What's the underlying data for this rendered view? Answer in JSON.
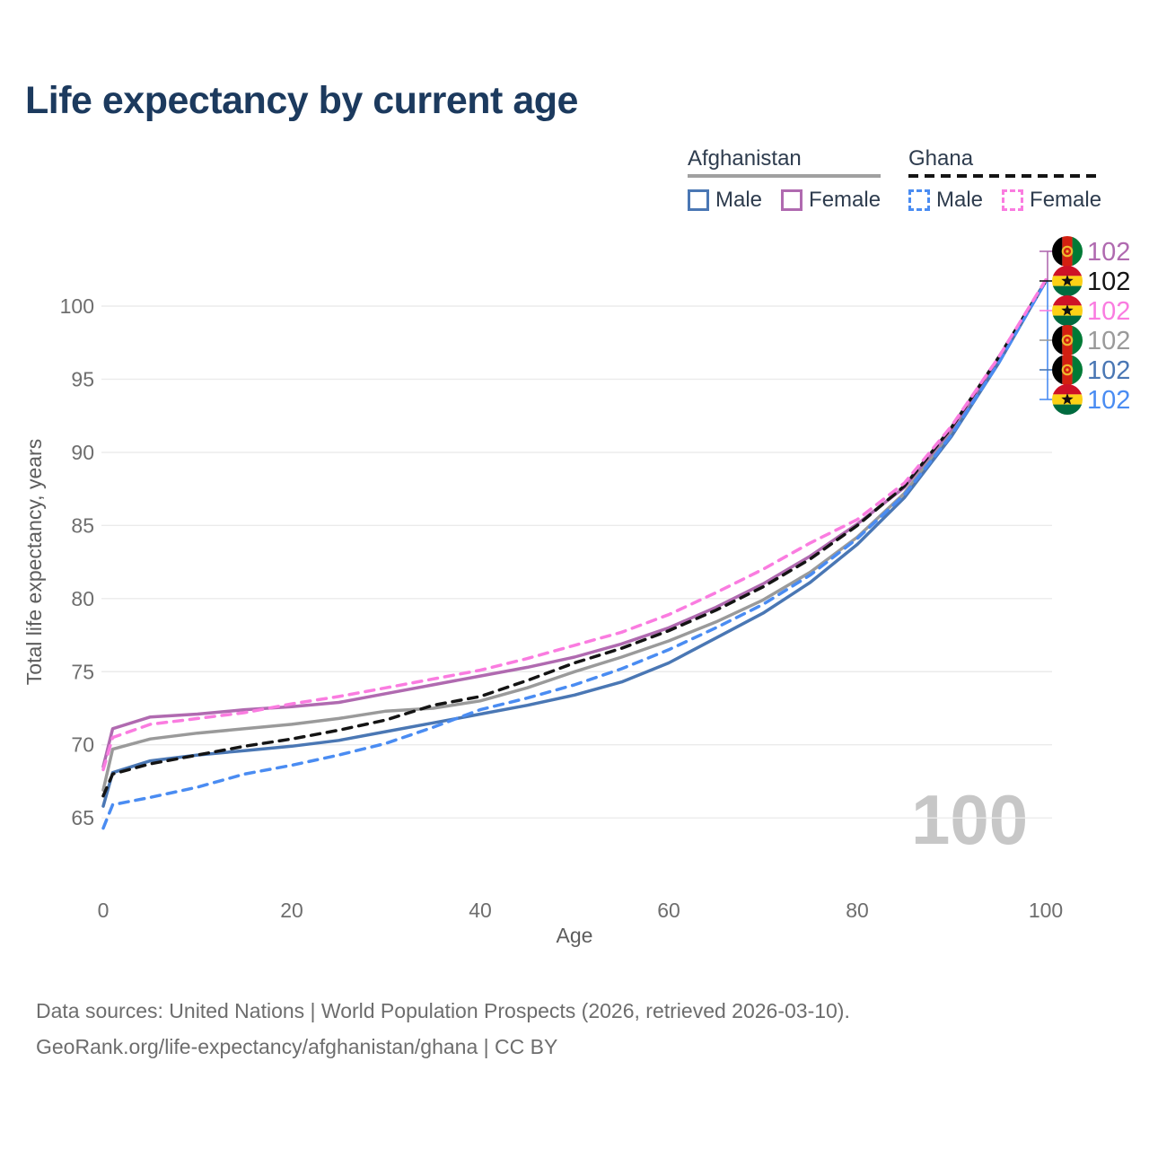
{
  "title": "Life expectancy by current age",
  "watermark": "100",
  "legend": {
    "groups": [
      {
        "name": "Afghanistan",
        "line_style": "solid",
        "underline_color": "#a0a0a0",
        "items": [
          {
            "label": "Male",
            "color": "#4a77b4",
            "dash": false
          },
          {
            "label": "Female",
            "color": "#b06ab0",
            "dash": false
          }
        ]
      },
      {
        "name": "Ghana",
        "line_style": "dashed",
        "underline_color": "#141414",
        "items": [
          {
            "label": "Male",
            "color": "#4a8cf2",
            "dash": true
          },
          {
            "label": "Female",
            "color": "#fa7ce0",
            "dash": true
          }
        ]
      }
    ]
  },
  "chart_data": {
    "type": "line",
    "title": "Life expectancy by current age",
    "xlabel": "Age",
    "ylabel": "Total life expectancy, years",
    "xticks": [
      0,
      20,
      40,
      60,
      80,
      100
    ],
    "yticks": [
      65,
      70,
      75,
      80,
      85,
      90,
      95,
      100
    ],
    "xlim": [
      0,
      100
    ],
    "ylim": [
      63.5,
      103
    ],
    "grid": "horizontal-only",
    "legend_position": "top-right",
    "ages": [
      0,
      1,
      5,
      10,
      15,
      20,
      25,
      30,
      35,
      40,
      45,
      50,
      55,
      60,
      65,
      70,
      75,
      80,
      85,
      90,
      95,
      100
    ],
    "series": [
      {
        "name": "Afghanistan Female",
        "country": "Afghanistan",
        "sex": "Female",
        "color": "#b06ab0",
        "dash": false,
        "end_label": "102",
        "values": [
          68.5,
          71.1,
          71.9,
          72.1,
          72.4,
          72.6,
          72.9,
          73.5,
          74.1,
          74.7,
          75.3,
          76.0,
          76.9,
          78.0,
          79.4,
          81.0,
          82.9,
          85.1,
          87.6,
          91.6,
          96.4,
          101.7
        ]
      },
      {
        "name": "Ghana Female",
        "country": "Ghana",
        "sex": "Female",
        "color": "#fa7ce0",
        "dash": true,
        "end_label": "102",
        "values": [
          68.3,
          70.5,
          71.4,
          71.8,
          72.2,
          72.8,
          73.3,
          73.9,
          74.5,
          75.1,
          75.9,
          76.8,
          77.7,
          78.9,
          80.4,
          82.0,
          83.8,
          85.4,
          87.9,
          91.8,
          96.5,
          101.8
        ]
      },
      {
        "name": "Afghanistan (both sexes)",
        "country": "Afghanistan",
        "sex": "All",
        "color": "#9a9a9a",
        "dash": false,
        "end_label": "102",
        "values": [
          66.9,
          69.7,
          70.4,
          70.8,
          71.1,
          71.4,
          71.8,
          72.3,
          72.5,
          73.0,
          73.9,
          75.0,
          76.0,
          77.1,
          78.4,
          79.9,
          81.8,
          84.2,
          87.2,
          91.4,
          96.3,
          101.7
        ]
      },
      {
        "name": "Ghana (both sexes)",
        "country": "Ghana",
        "sex": "All",
        "color": "#141414",
        "dash": true,
        "end_label": "102",
        "values": [
          66.5,
          68.0,
          68.7,
          69.3,
          69.9,
          70.4,
          71.0,
          71.7,
          72.7,
          73.3,
          74.4,
          75.6,
          76.6,
          77.8,
          79.2,
          80.8,
          82.7,
          85.0,
          87.7,
          91.7,
          96.5,
          101.7
        ]
      },
      {
        "name": "Afghanistan Male",
        "country": "Afghanistan",
        "sex": "Male",
        "color": "#4a77b4",
        "dash": false,
        "end_label": "102",
        "values": [
          65.8,
          68.1,
          68.9,
          69.3,
          69.6,
          69.9,
          70.3,
          70.9,
          71.5,
          72.1,
          72.7,
          73.4,
          74.3,
          75.6,
          77.3,
          79.0,
          81.1,
          83.7,
          86.9,
          91.1,
          96.1,
          101.7
        ]
      },
      {
        "name": "Ghana Male",
        "country": "Ghana",
        "sex": "Male",
        "color": "#4a8cf2",
        "dash": true,
        "end_label": "102",
        "values": [
          64.3,
          65.9,
          66.4,
          67.1,
          68.0,
          68.6,
          69.3,
          70.1,
          71.2,
          72.4,
          73.2,
          74.1,
          75.2,
          76.5,
          78.0,
          79.6,
          81.6,
          84.1,
          87.1,
          91.2,
          96.1,
          101.7
        ]
      }
    ]
  },
  "annotations": [
    {
      "flag": "afghanistan",
      "value": "102",
      "color": "#b06ab0",
      "series": "Afghanistan Female"
    },
    {
      "flag": "ghana",
      "value": "102",
      "color": "#141414",
      "series": "Ghana (both sexes)"
    },
    {
      "flag": "ghana",
      "value": "102",
      "color": "#fa7ce0",
      "series": "Ghana Female"
    },
    {
      "flag": "afghanistan",
      "value": "102",
      "color": "#9a9a9a",
      "series": "Afghanistan (both sexes)"
    },
    {
      "flag": "afghanistan",
      "value": "102",
      "color": "#4a77b4",
      "series": "Afghanistan Male"
    },
    {
      "flag": "ghana",
      "value": "102",
      "color": "#4a8cf2",
      "series": "Ghana Male"
    }
  ],
  "flag_colors": {
    "afghanistan": {
      "black": "#000000",
      "red": "#d32011",
      "green": "#007a36",
      "emblem": "#efb92d"
    },
    "ghana": {
      "red": "#ce1126",
      "gold": "#fcd116",
      "green": "#006b3f",
      "star": "#111111"
    }
  },
  "footer": {
    "line1": "Data sources: United Nations | World Population Prospects (2026, retrieved 2026-03-10).",
    "line2": "GeoRank.org/life-expectancy/afghanistan/ghana | CC BY"
  }
}
